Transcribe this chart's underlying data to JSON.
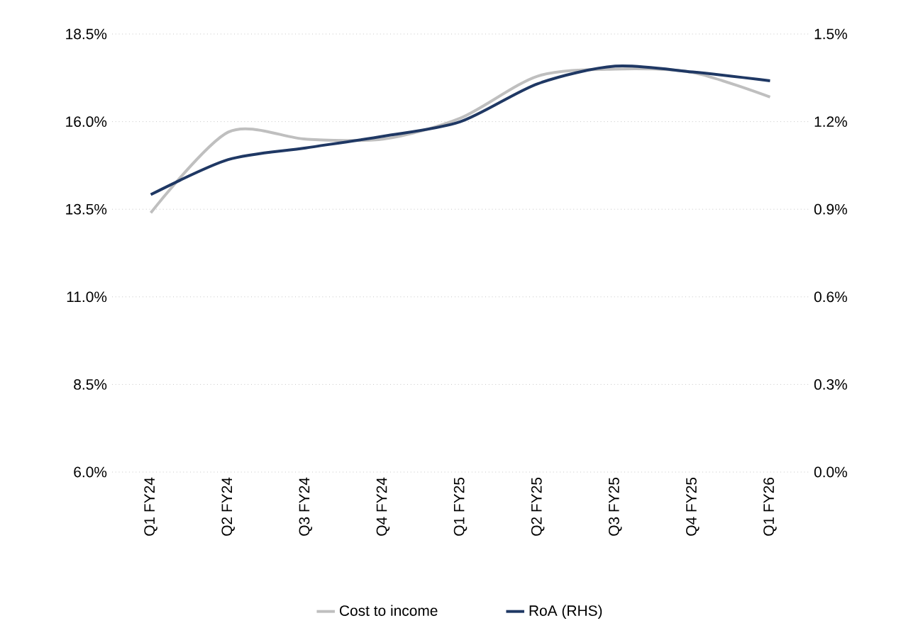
{
  "chart_data": {
    "type": "line",
    "categories": [
      "Q1 FY24",
      "Q2 FY24",
      "Q3 FY24",
      "Q4 FY24",
      "Q1 FY25",
      "Q2 FY25",
      "Q3 FY25",
      "Q4 FY25",
      "Q1 FY26"
    ],
    "series": [
      {
        "name": "Cost to income",
        "color": "#bfbfbf",
        "values": [
          13.4,
          15.7,
          15.5,
          15.5,
          16.1,
          17.3,
          17.5,
          17.4,
          16.7
        ]
      },
      {
        "name": "RoA (RHS)",
        "color": "#1f3864",
        "axis": "y2",
        "values": [
          0.95,
          1.07,
          1.11,
          1.15,
          1.2,
          1.33,
          1.39,
          1.37,
          1.34
        ]
      }
    ],
    "ylim": [
      6,
      18.5
    ],
    "yticks": [
      {
        "value": 6,
        "label": "6.0%"
      },
      {
        "value": 8.5,
        "label": "8.5%"
      },
      {
        "value": 11,
        "label": "11.0%"
      },
      {
        "value": 13.5,
        "label": "13.5%"
      },
      {
        "value": 16,
        "label": "16.0%"
      },
      {
        "value": 18.5,
        "label": "18.5%"
      }
    ],
    "y2lim": [
      0,
      1.5
    ],
    "y2ticks": [
      {
        "value": 0,
        "label": "0.0%"
      },
      {
        "value": 0.3,
        "label": "0.3%"
      },
      {
        "value": 0.6,
        "label": "0.6%"
      },
      {
        "value": 0.9,
        "label": "0.9%"
      },
      {
        "value": 1.2,
        "label": "1.2%"
      },
      {
        "value": 1.5,
        "label": "1.5%"
      }
    ],
    "grid": "y",
    "legend": "bottom",
    "line_style": "solid",
    "marker": "none"
  }
}
